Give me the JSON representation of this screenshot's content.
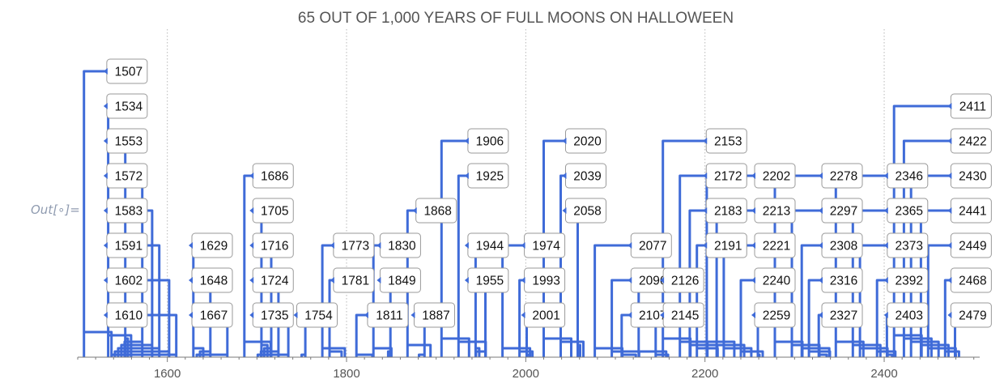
{
  "notebook": {
    "out_label": "Out[∘]="
  },
  "chart_data": {
    "type": "timeline",
    "title": "65 OUT OF 1,000 YEARS OF FULL MOONS ON HALLOWEEN",
    "xlabel": "",
    "ylabel": "",
    "xlim": [
      1500,
      2510
    ],
    "x_ticks": [
      1600,
      1800,
      2000,
      2200,
      2400
    ],
    "grid": "vertical at ticks, dotted",
    "line_color": "#3f6bd8",
    "years": [
      1507,
      1534,
      1553,
      1572,
      1583,
      1591,
      1602,
      1610,
      1629,
      1648,
      1667,
      1686,
      1705,
      1716,
      1724,
      1735,
      1754,
      1773,
      1781,
      1811,
      1830,
      1849,
      1868,
      1887,
      1906,
      1925,
      1944,
      1955,
      1974,
      1993,
      2001,
      2020,
      2039,
      2058,
      2077,
      2096,
      2107,
      2126,
      2145,
      2153,
      2172,
      2183,
      2191,
      2202,
      2213,
      2221,
      2240,
      2259,
      2278,
      2297,
      2308,
      2316,
      2327,
      2346,
      2365,
      2373,
      2392,
      2403,
      2411,
      2422,
      2430,
      2441,
      2449,
      2468,
      2479
    ],
    "labels": [
      {
        "year": 1507,
        "row": 0,
        "col": 1555
      },
      {
        "year": 1534,
        "row": 1,
        "col": 1555
      },
      {
        "year": 1553,
        "row": 2,
        "col": 1555
      },
      {
        "year": 1572,
        "row": 3,
        "col": 1555
      },
      {
        "year": 1583,
        "row": 4,
        "col": 1555
      },
      {
        "year": 1591,
        "row": 5,
        "col": 1555
      },
      {
        "year": 1602,
        "row": 6,
        "col": 1555
      },
      {
        "year": 1610,
        "row": 7,
        "col": 1555
      },
      {
        "year": 1629,
        "row": 5,
        "col": 1650
      },
      {
        "year": 1648,
        "row": 6,
        "col": 1650
      },
      {
        "year": 1667,
        "row": 7,
        "col": 1650
      },
      {
        "year": 1686,
        "row": 3,
        "col": 1718
      },
      {
        "year": 1705,
        "row": 4,
        "col": 1718
      },
      {
        "year": 1716,
        "row": 5,
        "col": 1718
      },
      {
        "year": 1724,
        "row": 6,
        "col": 1718
      },
      {
        "year": 1735,
        "row": 7,
        "col": 1718
      },
      {
        "year": 1754,
        "row": 7,
        "col": 1767
      },
      {
        "year": 1773,
        "row": 5,
        "col": 1808
      },
      {
        "year": 1781,
        "row": 6,
        "col": 1808
      },
      {
        "year": 1811,
        "row": 7,
        "col": 1846
      },
      {
        "year": 1830,
        "row": 5,
        "col": 1860
      },
      {
        "year": 1849,
        "row": 6,
        "col": 1860
      },
      {
        "year": 1868,
        "row": 4,
        "col": 1900
      },
      {
        "year": 1887,
        "row": 7,
        "col": 1898
      },
      {
        "year": 1906,
        "row": 2,
        "col": 1958
      },
      {
        "year": 1925,
        "row": 3,
        "col": 1958
      },
      {
        "year": 1944,
        "row": 5,
        "col": 1958
      },
      {
        "year": 1955,
        "row": 6,
        "col": 1958
      },
      {
        "year": 1974,
        "row": 5,
        "col": 2021
      },
      {
        "year": 1993,
        "row": 6,
        "col": 2021
      },
      {
        "year": 2001,
        "row": 7,
        "col": 2021
      },
      {
        "year": 2020,
        "row": 2,
        "col": 2067
      },
      {
        "year": 2039,
        "row": 3,
        "col": 2067
      },
      {
        "year": 2058,
        "row": 4,
        "col": 2067
      },
      {
        "year": 2077,
        "row": 5,
        "col": 2140
      },
      {
        "year": 2096,
        "row": 6,
        "col": 2140
      },
      {
        "year": 2107,
        "row": 7,
        "col": 2140
      },
      {
        "year": 2126,
        "row": 6,
        "col": 2176
      },
      {
        "year": 2145,
        "row": 7,
        "col": 2176
      },
      {
        "year": 2153,
        "row": 2,
        "col": 2224
      },
      {
        "year": 2172,
        "row": 3,
        "col": 2224
      },
      {
        "year": 2183,
        "row": 4,
        "col": 2224
      },
      {
        "year": 2191,
        "row": 5,
        "col": 2224
      },
      {
        "year": 2202,
        "row": 3,
        "col": 2278
      },
      {
        "year": 2213,
        "row": 4,
        "col": 2278
      },
      {
        "year": 2221,
        "row": 5,
        "col": 2278
      },
      {
        "year": 2240,
        "row": 6,
        "col": 2278
      },
      {
        "year": 2259,
        "row": 7,
        "col": 2278
      },
      {
        "year": 2278,
        "row": 3,
        "col": 2353
      },
      {
        "year": 2297,
        "row": 4,
        "col": 2353
      },
      {
        "year": 2308,
        "row": 5,
        "col": 2353
      },
      {
        "year": 2316,
        "row": 6,
        "col": 2353
      },
      {
        "year": 2327,
        "row": 7,
        "col": 2353
      },
      {
        "year": 2346,
        "row": 3,
        "col": 2426
      },
      {
        "year": 2365,
        "row": 4,
        "col": 2426
      },
      {
        "year": 2373,
        "row": 5,
        "col": 2426
      },
      {
        "year": 2392,
        "row": 6,
        "col": 2426
      },
      {
        "year": 2403,
        "row": 7,
        "col": 2426
      },
      {
        "year": 2411,
        "row": 1,
        "col": 2497
      },
      {
        "year": 2422,
        "row": 2,
        "col": 2497
      },
      {
        "year": 2430,
        "row": 3,
        "col": 2497
      },
      {
        "year": 2441,
        "row": 4,
        "col": 2497
      },
      {
        "year": 2449,
        "row": 5,
        "col": 2497
      },
      {
        "year": 2468,
        "row": 6,
        "col": 2497
      },
      {
        "year": 2479,
        "row": 7,
        "col": 2497
      }
    ]
  }
}
